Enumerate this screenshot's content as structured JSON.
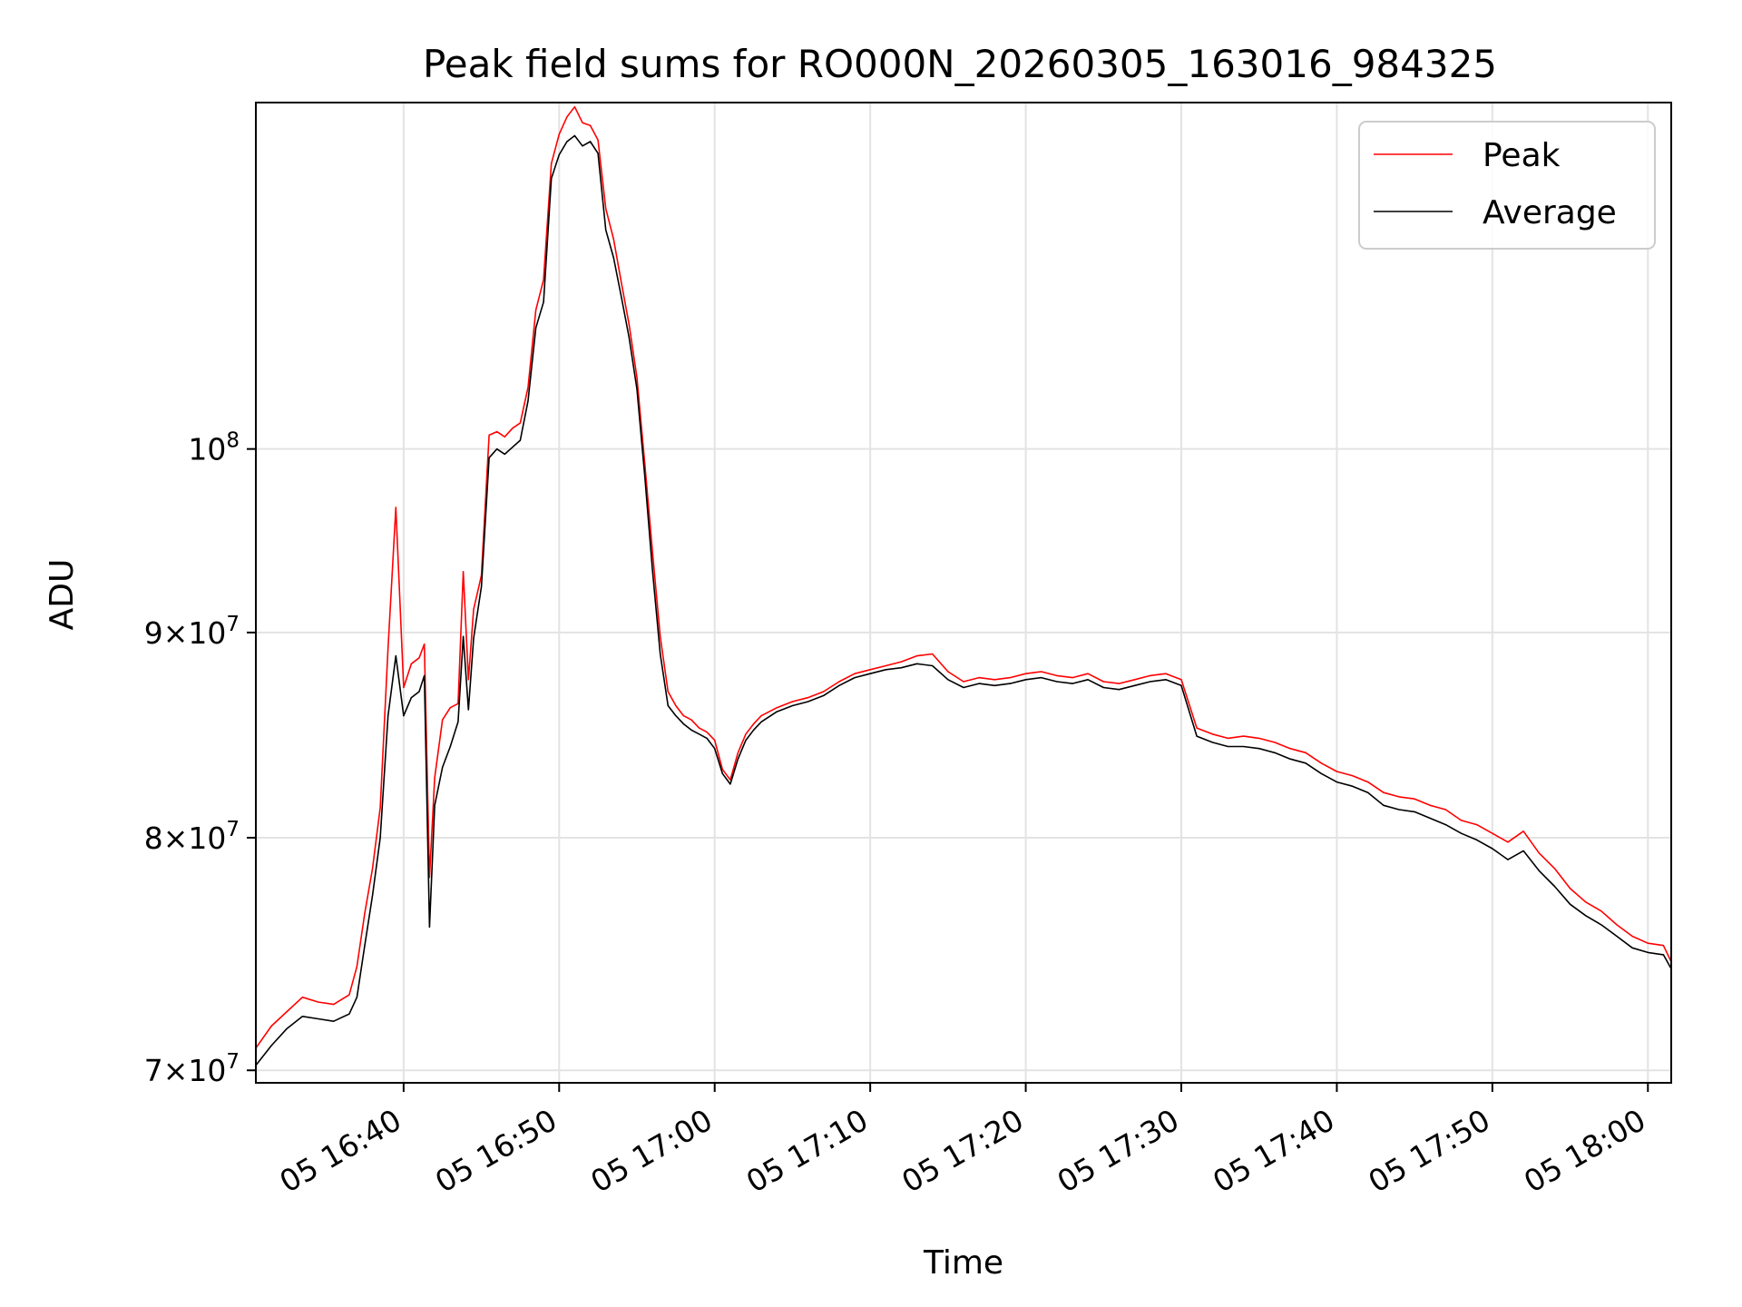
{
  "chart_data": {
    "type": "line",
    "title": "Peak field sums for RO000N_20260305_163016_984325",
    "xlabel": "Time",
    "ylabel": "ADU",
    "yscale": "log",
    "xlim": [
      "16:30:30",
      "18:01:30"
    ],
    "ylim": [
      69500000,
      122000000
    ],
    "x_ticks": [
      {
        "t": "16:40",
        "label": "05 16:40"
      },
      {
        "t": "16:50",
        "label": "05 16:50"
      },
      {
        "t": "17:00",
        "label": "05 17:00"
      },
      {
        "t": "17:10",
        "label": "05 17:10"
      },
      {
        "t": "17:20",
        "label": "05 17:20"
      },
      {
        "t": "17:30",
        "label": "05 17:30"
      },
      {
        "t": "17:40",
        "label": "05 17:40"
      },
      {
        "t": "17:50",
        "label": "05 17:50"
      },
      {
        "t": "18:00",
        "label": "05 18:00"
      }
    ],
    "y_ticks": [
      {
        "value": 70000000,
        "mantissa": "7",
        "base": "10",
        "exp": "7"
      },
      {
        "value": 80000000,
        "mantissa": "8",
        "base": "10",
        "exp": "7"
      },
      {
        "value": 90000000,
        "mantissa": "9",
        "base": "10",
        "exp": "7"
      },
      {
        "value": 100000000,
        "mantissa": "",
        "base": "10",
        "exp": "8"
      }
    ],
    "legend_position": "top-right",
    "series": [
      {
        "name": "Peak",
        "color": "#ff0000",
        "x": [
          "16:30:30",
          "16:31:30",
          "16:32:30",
          "16:33:30",
          "16:34:30",
          "16:35:30",
          "16:36:30",
          "16:37:00",
          "16:37:30",
          "16:38:00",
          "16:38:30",
          "16:39:00",
          "16:39:30",
          "16:40:00",
          "16:40:30",
          "16:41:00",
          "16:41:20",
          "16:41:40",
          "16:42:00",
          "16:42:30",
          "16:43:00",
          "16:43:30",
          "16:43:50",
          "16:44:10",
          "16:44:30",
          "16:45:00",
          "16:45:30",
          "16:46:00",
          "16:46:30",
          "16:47:00",
          "16:47:30",
          "16:48:00",
          "16:48:30",
          "16:49:00",
          "16:49:30",
          "16:50:00",
          "16:50:30",
          "16:51:00",
          "16:51:30",
          "16:52:00",
          "16:52:30",
          "16:53:00",
          "16:53:30",
          "16:54:00",
          "16:54:30",
          "16:55:00",
          "16:55:30",
          "16:56:00",
          "16:56:30",
          "16:57:00",
          "16:57:30",
          "16:58:00",
          "16:58:30",
          "16:59:00",
          "16:59:30",
          "17:00:00",
          "17:00:30",
          "17:01:00",
          "17:01:30",
          "17:02:00",
          "17:02:30",
          "17:03:00",
          "17:04:00",
          "17:05:00",
          "17:06:00",
          "17:07:00",
          "17:08:00",
          "17:09:00",
          "17:10:00",
          "17:11:00",
          "17:12:00",
          "17:13:00",
          "17:14:00",
          "17:15:00",
          "17:16:00",
          "17:17:00",
          "17:18:00",
          "17:19:00",
          "17:20:00",
          "17:21:00",
          "17:22:00",
          "17:23:00",
          "17:24:00",
          "17:25:00",
          "17:26:00",
          "17:27:00",
          "17:28:00",
          "17:29:00",
          "17:30:00",
          "17:31:00",
          "17:32:00",
          "17:33:00",
          "17:34:00",
          "17:35:00",
          "17:36:00",
          "17:37:00",
          "17:38:00",
          "17:39:00",
          "17:40:00",
          "17:41:00",
          "17:42:00",
          "17:43:00",
          "17:44:00",
          "17:45:00",
          "17:46:00",
          "17:47:00",
          "17:48:00",
          "17:49:00",
          "17:50:00",
          "17:51:00",
          "17:52:00",
          "17:53:00",
          "17:54:00",
          "17:55:00",
          "17:56:00",
          "17:57:00",
          "17:58:00",
          "17:59:00",
          "18:00:00",
          "18:01:00",
          "18:01:30"
        ],
        "values": [
          70900000,
          71800000,
          72400000,
          73000000,
          72800000,
          72700000,
          73100000,
          74300000,
          76600000,
          78600000,
          81400000,
          89200000,
          96700000,
          87200000,
          88400000,
          88700000,
          89400000,
          78200000,
          82800000,
          85600000,
          86200000,
          86400000,
          93200000,
          87600000,
          91200000,
          93000000,
          100800000,
          101000000,
          100700000,
          101200000,
          101500000,
          103600000,
          108300000,
          110200000,
          117800000,
          119800000,
          121000000,
          121700000,
          120600000,
          120400000,
          119400000,
          114800000,
          112800000,
          110000000,
          107400000,
          104200000,
          99200000,
          94300000,
          89800000,
          87000000,
          86300000,
          85800000,
          85600000,
          85200000,
          85000000,
          84600000,
          83200000,
          82700000,
          84000000,
          84900000,
          85400000,
          85800000,
          86200000,
          86500000,
          86700000,
          87000000,
          87500000,
          87900000,
          88100000,
          88300000,
          88500000,
          88800000,
          88900000,
          88000000,
          87500000,
          87700000,
          87600000,
          87700000,
          87900000,
          88000000,
          87800000,
          87700000,
          87900000,
          87500000,
          87400000,
          87600000,
          87800000,
          87900000,
          87600000,
          85200000,
          84900000,
          84700000,
          84800000,
          84700000,
          84500000,
          84200000,
          84000000,
          83500000,
          83100000,
          82900000,
          82600000,
          82100000,
          81900000,
          81800000,
          81500000,
          81300000,
          80800000,
          80600000,
          80200000,
          79800000,
          80300000,
          79300000,
          78600000,
          77700000,
          77100000,
          76700000,
          76100000,
          75600000,
          75300000,
          75200000,
          74500000
        ]
      },
      {
        "name": "Average",
        "color": "#000000",
        "x": [
          "16:30:30",
          "16:31:30",
          "16:32:30",
          "16:33:30",
          "16:34:30",
          "16:35:30",
          "16:36:30",
          "16:37:00",
          "16:37:30",
          "16:38:00",
          "16:38:30",
          "16:39:00",
          "16:39:30",
          "16:40:00",
          "16:40:30",
          "16:41:00",
          "16:41:20",
          "16:41:40",
          "16:42:00",
          "16:42:30",
          "16:43:00",
          "16:43:30",
          "16:43:50",
          "16:44:10",
          "16:44:30",
          "16:45:00",
          "16:45:30",
          "16:46:00",
          "16:46:30",
          "16:47:00",
          "16:47:30",
          "16:48:00",
          "16:48:30",
          "16:49:00",
          "16:49:30",
          "16:50:00",
          "16:50:30",
          "16:51:00",
          "16:51:30",
          "16:52:00",
          "16:52:30",
          "16:53:00",
          "16:53:30",
          "16:54:00",
          "16:54:30",
          "16:55:00",
          "16:55:30",
          "16:56:00",
          "16:56:30",
          "16:57:00",
          "16:57:30",
          "16:58:00",
          "16:58:30",
          "16:59:00",
          "16:59:30",
          "17:00:00",
          "17:00:30",
          "17:01:00",
          "17:01:30",
          "17:02:00",
          "17:02:30",
          "17:03:00",
          "17:04:00",
          "17:05:00",
          "17:06:00",
          "17:07:00",
          "17:08:00",
          "17:09:00",
          "17:10:00",
          "17:11:00",
          "17:12:00",
          "17:13:00",
          "17:14:00",
          "17:15:00",
          "17:16:00",
          "17:17:00",
          "17:18:00",
          "17:19:00",
          "17:20:00",
          "17:21:00",
          "17:22:00",
          "17:23:00",
          "17:24:00",
          "17:25:00",
          "17:26:00",
          "17:27:00",
          "17:28:00",
          "17:29:00",
          "17:30:00",
          "17:31:00",
          "17:32:00",
          "17:33:00",
          "17:34:00",
          "17:35:00",
          "17:36:00",
          "17:37:00",
          "17:38:00",
          "17:39:00",
          "17:40:00",
          "17:41:00",
          "17:42:00",
          "17:43:00",
          "17:44:00",
          "17:45:00",
          "17:46:00",
          "17:47:00",
          "17:48:00",
          "17:49:00",
          "17:50:00",
          "17:51:00",
          "17:52:00",
          "17:53:00",
          "17:54:00",
          "17:55:00",
          "17:56:00",
          "17:57:00",
          "17:58:00",
          "17:59:00",
          "18:00:00",
          "18:01:00",
          "18:01:30"
        ],
        "values": [
          70200000,
          71000000,
          71700000,
          72200000,
          72100000,
          72000000,
          72300000,
          73000000,
          75200000,
          77400000,
          80000000,
          85800000,
          88800000,
          85800000,
          86700000,
          87000000,
          87800000,
          76000000,
          81500000,
          83300000,
          84300000,
          85500000,
          89800000,
          86100000,
          89700000,
          92400000,
          99500000,
          100000000,
          99700000,
          100100000,
          100500000,
          102800000,
          107200000,
          108800000,
          116800000,
          118400000,
          119300000,
          119700000,
          119000000,
          119300000,
          118500000,
          113400000,
          111600000,
          109100000,
          106600000,
          103500000,
          98500000,
          93300000,
          88900000,
          86300000,
          85800000,
          85400000,
          85100000,
          84900000,
          84700000,
          84200000,
          83000000,
          82500000,
          83700000,
          84600000,
          85100000,
          85500000,
          86000000,
          86300000,
          86500000,
          86800000,
          87300000,
          87700000,
          87900000,
          88100000,
          88200000,
          88400000,
          88300000,
          87600000,
          87200000,
          87400000,
          87300000,
          87400000,
          87600000,
          87700000,
          87500000,
          87400000,
          87600000,
          87200000,
          87100000,
          87300000,
          87500000,
          87600000,
          87300000,
          84800000,
          84500000,
          84300000,
          84300000,
          84200000,
          84000000,
          83700000,
          83500000,
          83000000,
          82600000,
          82400000,
          82100000,
          81500000,
          81300000,
          81200000,
          80900000,
          80600000,
          80200000,
          79900000,
          79500000,
          79000000,
          79400000,
          78500000,
          77800000,
          77000000,
          76500000,
          76100000,
          75600000,
          75100000,
          74900000,
          74800000,
          74200000
        ]
      }
    ]
  }
}
